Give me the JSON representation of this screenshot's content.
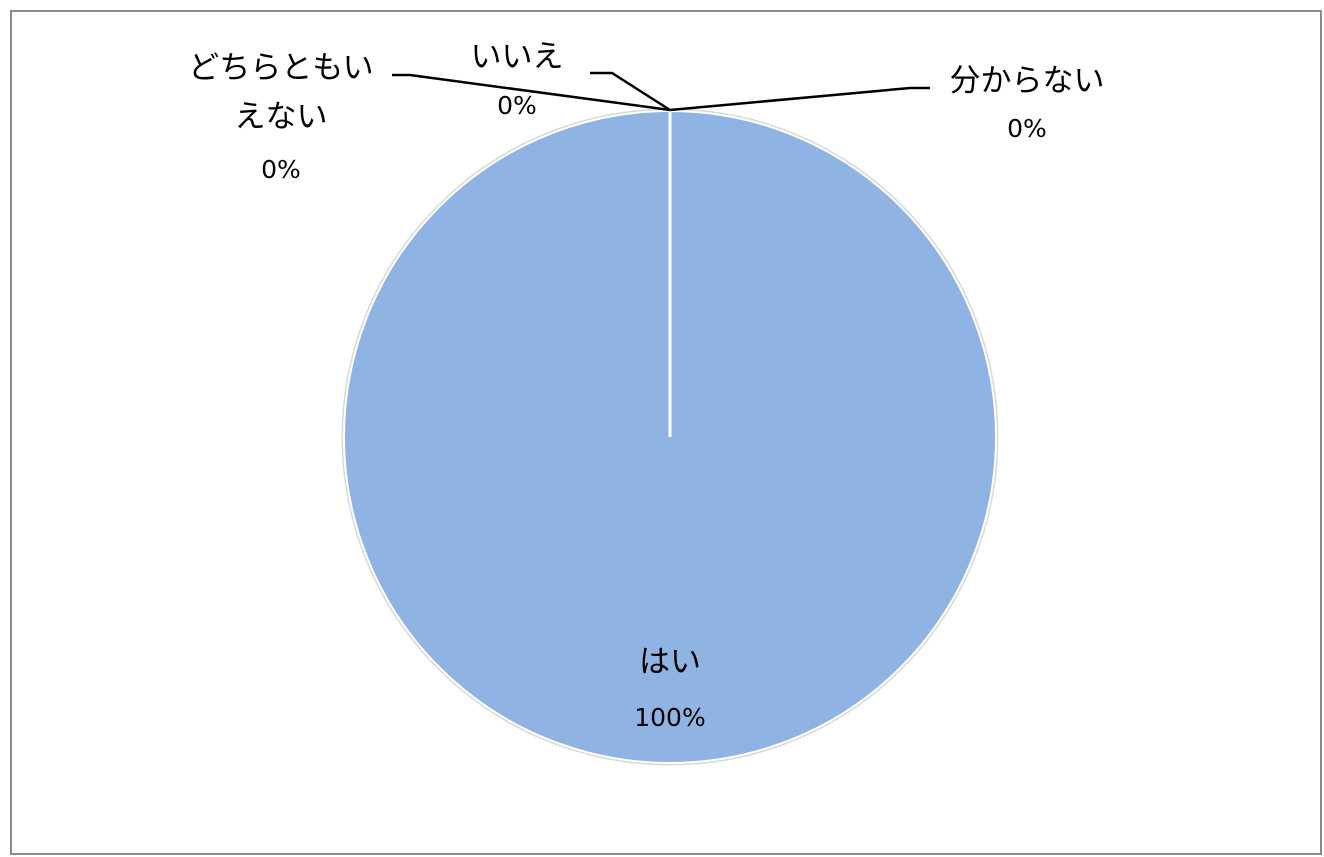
{
  "chart_data": {
    "type": "pie",
    "slices": [
      {
        "label_lines": [
          "はい"
        ],
        "percent_label": "100%",
        "value": 100
      },
      {
        "label_lines": [
          "いいえ"
        ],
        "percent_label": "0%",
        "value": 0
      },
      {
        "label_lines": [
          "どちらともい",
          "えない"
        ],
        "percent_label": "0%",
        "value": 0
      },
      {
        "label_lines": [
          "分からない"
        ],
        "percent_label": "0%",
        "value": 0
      }
    ],
    "start_angle_deg": 0,
    "direction": "clockwise",
    "legend": "none",
    "colors": {
      "slice_fill": "#8fb3e2",
      "slice_stroke": "#ffffff",
      "outline": "#d9d9d9",
      "leader_line": "#000000",
      "frame": "#8a8a8a"
    }
  }
}
